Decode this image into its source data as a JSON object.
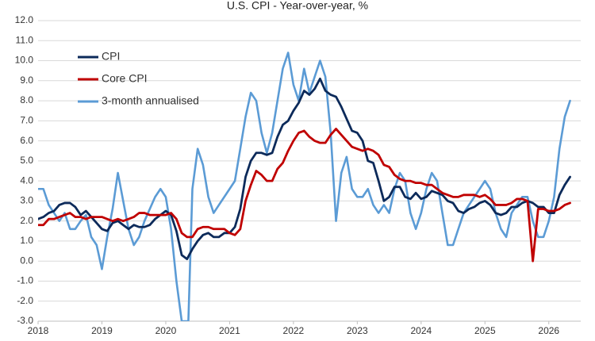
{
  "chart_data": {
    "type": "line",
    "title": "U.S. CPI - Year-over-year, %",
    "xlabel": "",
    "ylabel": "",
    "xlim": [
      2018.0,
      2026.5
    ],
    "ylim": [
      -3.0,
      12.0
    ],
    "y_tick_step": 1.0,
    "y_ticks": [
      "-3.0",
      "-2.0",
      "-1.0",
      "0.0",
      "1.0",
      "2.0",
      "3.0",
      "4.0",
      "5.0",
      "6.0",
      "7.0",
      "8.0",
      "9.0",
      "10.0",
      "11.0",
      "12.0"
    ],
    "x_ticks": [
      "2018",
      "2019",
      "2020",
      "2021",
      "2022",
      "2023",
      "2024",
      "2025",
      "2026"
    ],
    "grid": "horizontal",
    "legend": "top-left",
    "series": [
      {
        "name": "CPI",
        "color": "#0c2a5a",
        "points": [
          [
            2018.0,
            2.1
          ],
          [
            2018.083,
            2.2
          ],
          [
            2018.167,
            2.4
          ],
          [
            2018.25,
            2.5
          ],
          [
            2018.333,
            2.8
          ],
          [
            2018.417,
            2.9
          ],
          [
            2018.5,
            2.9
          ],
          [
            2018.583,
            2.7
          ],
          [
            2018.667,
            2.3
          ],
          [
            2018.75,
            2.5
          ],
          [
            2018.833,
            2.2
          ],
          [
            2018.917,
            1.9
          ],
          [
            2019.0,
            1.6
          ],
          [
            2019.083,
            1.5
          ],
          [
            2019.167,
            1.9
          ],
          [
            2019.25,
            2.0
          ],
          [
            2019.333,
            1.8
          ],
          [
            2019.417,
            1.6
          ],
          [
            2019.5,
            1.8
          ],
          [
            2019.583,
            1.7
          ],
          [
            2019.667,
            1.7
          ],
          [
            2019.75,
            1.8
          ],
          [
            2019.833,
            2.1
          ],
          [
            2019.917,
            2.3
          ],
          [
            2020.0,
            2.5
          ],
          [
            2020.083,
            2.3
          ],
          [
            2020.167,
            1.5
          ],
          [
            2020.25,
            0.3
          ],
          [
            2020.333,
            0.1
          ],
          [
            2020.417,
            0.6
          ],
          [
            2020.5,
            1.0
          ],
          [
            2020.583,
            1.3
          ],
          [
            2020.667,
            1.4
          ],
          [
            2020.75,
            1.2
          ],
          [
            2020.833,
            1.2
          ],
          [
            2020.917,
            1.4
          ],
          [
            2021.0,
            1.4
          ],
          [
            2021.083,
            1.7
          ],
          [
            2021.167,
            2.6
          ],
          [
            2021.25,
            4.2
          ],
          [
            2021.333,
            5.0
          ],
          [
            2021.417,
            5.4
          ],
          [
            2021.5,
            5.4
          ],
          [
            2021.583,
            5.3
          ],
          [
            2021.667,
            5.4
          ],
          [
            2021.75,
            6.2
          ],
          [
            2021.833,
            6.8
          ],
          [
            2021.917,
            7.0
          ],
          [
            2022.0,
            7.5
          ],
          [
            2022.083,
            7.9
          ],
          [
            2022.167,
            8.5
          ],
          [
            2022.25,
            8.3
          ],
          [
            2022.333,
            8.6
          ],
          [
            2022.417,
            9.1
          ],
          [
            2022.5,
            8.5
          ],
          [
            2022.583,
            8.3
          ],
          [
            2022.667,
            8.2
          ],
          [
            2022.75,
            7.7
          ],
          [
            2022.833,
            7.1
          ],
          [
            2022.917,
            6.5
          ],
          [
            2023.0,
            6.4
          ],
          [
            2023.083,
            6.0
          ],
          [
            2023.167,
            5.0
          ],
          [
            2023.25,
            4.9
          ],
          [
            2023.333,
            4.0
          ],
          [
            2023.417,
            3.0
          ],
          [
            2023.5,
            3.2
          ],
          [
            2023.583,
            3.7
          ],
          [
            2023.667,
            3.7
          ],
          [
            2023.75,
            3.2
          ],
          [
            2023.833,
            3.1
          ],
          [
            2023.917,
            3.4
          ],
          [
            2024.0,
            3.1
          ],
          [
            2024.083,
            3.2
          ],
          [
            2024.167,
            3.5
          ],
          [
            2024.25,
            3.4
          ],
          [
            2024.333,
            3.3
          ],
          [
            2024.417,
            3.0
          ],
          [
            2024.5,
            2.9
          ],
          [
            2024.583,
            2.5
          ],
          [
            2024.667,
            2.4
          ],
          [
            2024.75,
            2.6
          ],
          [
            2024.833,
            2.7
          ],
          [
            2024.917,
            2.9
          ],
          [
            2025.0,
            3.0
          ],
          [
            2025.083,
            2.8
          ],
          [
            2025.167,
            2.4
          ],
          [
            2025.25,
            2.3
          ],
          [
            2025.333,
            2.4
          ],
          [
            2025.417,
            2.7
          ],
          [
            2025.5,
            2.7
          ],
          [
            2025.583,
            2.9
          ],
          [
            2025.667,
            3.0
          ],
          [
            2025.75,
            2.9
          ],
          [
            2025.833,
            2.7
          ],
          [
            2025.917,
            2.7
          ],
          [
            2026.0,
            2.4
          ],
          [
            2026.083,
            2.4
          ],
          [
            2026.167,
            3.3
          ],
          [
            2026.25,
            3.8
          ],
          [
            2026.333,
            4.2
          ]
        ]
      },
      {
        "name": "Core CPI",
        "color": "#c00000",
        "points": [
          [
            2018.0,
            1.8
          ],
          [
            2018.083,
            1.8
          ],
          [
            2018.167,
            2.1
          ],
          [
            2018.25,
            2.1
          ],
          [
            2018.333,
            2.2
          ],
          [
            2018.417,
            2.3
          ],
          [
            2018.5,
            2.4
          ],
          [
            2018.583,
            2.2
          ],
          [
            2018.667,
            2.2
          ],
          [
            2018.75,
            2.1
          ],
          [
            2018.833,
            2.2
          ],
          [
            2018.917,
            2.2
          ],
          [
            2019.0,
            2.2
          ],
          [
            2019.083,
            2.1
          ],
          [
            2019.167,
            2.0
          ],
          [
            2019.25,
            2.1
          ],
          [
            2019.333,
            2.0
          ],
          [
            2019.417,
            2.1
          ],
          [
            2019.5,
            2.2
          ],
          [
            2019.583,
            2.4
          ],
          [
            2019.667,
            2.4
          ],
          [
            2019.75,
            2.3
          ],
          [
            2019.833,
            2.3
          ],
          [
            2019.917,
            2.3
          ],
          [
            2020.0,
            2.3
          ],
          [
            2020.083,
            2.4
          ],
          [
            2020.167,
            2.1
          ],
          [
            2020.25,
            1.4
          ],
          [
            2020.333,
            1.2
          ],
          [
            2020.417,
            1.2
          ],
          [
            2020.5,
            1.6
          ],
          [
            2020.583,
            1.7
          ],
          [
            2020.667,
            1.7
          ],
          [
            2020.75,
            1.6
          ],
          [
            2020.833,
            1.6
          ],
          [
            2020.917,
            1.6
          ],
          [
            2021.0,
            1.4
          ],
          [
            2021.083,
            1.3
          ],
          [
            2021.167,
            1.6
          ],
          [
            2021.25,
            3.0
          ],
          [
            2021.333,
            3.8
          ],
          [
            2021.417,
            4.5
          ],
          [
            2021.5,
            4.3
          ],
          [
            2021.583,
            4.0
          ],
          [
            2021.667,
            4.0
          ],
          [
            2021.75,
            4.6
          ],
          [
            2021.833,
            4.9
          ],
          [
            2021.917,
            5.5
          ],
          [
            2022.0,
            6.0
          ],
          [
            2022.083,
            6.4
          ],
          [
            2022.167,
            6.5
          ],
          [
            2022.25,
            6.2
          ],
          [
            2022.333,
            6.0
          ],
          [
            2022.417,
            5.9
          ],
          [
            2022.5,
            5.9
          ],
          [
            2022.583,
            6.3
          ],
          [
            2022.667,
            6.6
          ],
          [
            2022.75,
            6.3
          ],
          [
            2022.833,
            6.0
          ],
          [
            2022.917,
            5.7
          ],
          [
            2023.0,
            5.6
          ],
          [
            2023.083,
            5.5
          ],
          [
            2023.167,
            5.6
          ],
          [
            2023.25,
            5.5
          ],
          [
            2023.333,
            5.3
          ],
          [
            2023.417,
            4.8
          ],
          [
            2023.5,
            4.7
          ],
          [
            2023.583,
            4.3
          ],
          [
            2023.667,
            4.1
          ],
          [
            2023.75,
            4.0
          ],
          [
            2023.833,
            4.0
          ],
          [
            2023.917,
            3.9
          ],
          [
            2024.0,
            3.9
          ],
          [
            2024.083,
            3.8
          ],
          [
            2024.167,
            3.8
          ],
          [
            2024.25,
            3.6
          ],
          [
            2024.333,
            3.4
          ],
          [
            2024.417,
            3.3
          ],
          [
            2024.5,
            3.2
          ],
          [
            2024.583,
            3.2
          ],
          [
            2024.667,
            3.3
          ],
          [
            2024.75,
            3.3
          ],
          [
            2024.833,
            3.3
          ],
          [
            2024.917,
            3.2
          ],
          [
            2025.0,
            3.3
          ],
          [
            2025.083,
            3.1
          ],
          [
            2025.167,
            2.8
          ],
          [
            2025.25,
            2.8
          ],
          [
            2025.333,
            2.8
          ],
          [
            2025.417,
            2.9
          ],
          [
            2025.5,
            3.1
          ],
          [
            2025.583,
            3.1
          ],
          [
            2025.667,
            3.0
          ],
          [
            2025.75,
            0.0
          ],
          [
            2025.833,
            2.6
          ],
          [
            2025.917,
            2.6
          ],
          [
            2026.0,
            2.5
          ],
          [
            2026.083,
            2.5
          ],
          [
            2026.167,
            2.6
          ],
          [
            2026.25,
            2.8
          ],
          [
            2026.333,
            2.9
          ]
        ]
      },
      {
        "name": "3-month annualised",
        "color": "#5b9bd5",
        "points": [
          [
            2018.0,
            3.6
          ],
          [
            2018.083,
            3.6
          ],
          [
            2018.167,
            2.8
          ],
          [
            2018.25,
            2.4
          ],
          [
            2018.333,
            2.0
          ],
          [
            2018.417,
            2.4
          ],
          [
            2018.5,
            1.6
          ],
          [
            2018.583,
            1.6
          ],
          [
            2018.667,
            2.0
          ],
          [
            2018.75,
            2.3
          ],
          [
            2018.833,
            1.2
          ],
          [
            2018.917,
            0.8
          ],
          [
            2019.0,
            -0.4
          ],
          [
            2019.083,
            1.2
          ],
          [
            2019.167,
            2.6
          ],
          [
            2019.25,
            4.4
          ],
          [
            2019.333,
            3.0
          ],
          [
            2019.417,
            1.6
          ],
          [
            2019.5,
            0.8
          ],
          [
            2019.583,
            1.2
          ],
          [
            2019.667,
            2.0
          ],
          [
            2019.75,
            2.6
          ],
          [
            2019.833,
            3.2
          ],
          [
            2019.917,
            3.6
          ],
          [
            2020.0,
            3.2
          ],
          [
            2020.083,
            1.6
          ],
          [
            2020.167,
            -1.0
          ],
          [
            2020.25,
            -3.0
          ],
          [
            2020.333,
            -3.0
          ],
          [
            2020.354,
            -3.0
          ],
          [
            2020.417,
            3.6
          ],
          [
            2020.5,
            5.6
          ],
          [
            2020.583,
            4.8
          ],
          [
            2020.667,
            3.2
          ],
          [
            2020.75,
            2.4
          ],
          [
            2020.833,
            2.8
          ],
          [
            2021.0,
            3.6
          ],
          [
            2021.083,
            4.0
          ],
          [
            2021.167,
            5.6
          ],
          [
            2021.25,
            7.2
          ],
          [
            2021.333,
            8.4
          ],
          [
            2021.417,
            8.0
          ],
          [
            2021.5,
            6.4
          ],
          [
            2021.583,
            5.4
          ],
          [
            2021.667,
            6.4
          ],
          [
            2021.75,
            8.0
          ],
          [
            2021.833,
            9.6
          ],
          [
            2021.917,
            10.4
          ],
          [
            2022.0,
            8.8
          ],
          [
            2022.083,
            8.0
          ],
          [
            2022.167,
            9.6
          ],
          [
            2022.25,
            8.4
          ],
          [
            2022.333,
            9.2
          ],
          [
            2022.417,
            10.0
          ],
          [
            2022.5,
            9.2
          ],
          [
            2022.583,
            6.4
          ],
          [
            2022.667,
            2.0
          ],
          [
            2022.75,
            4.4
          ],
          [
            2022.833,
            5.2
          ],
          [
            2022.917,
            3.6
          ],
          [
            2023.0,
            3.2
          ],
          [
            2023.083,
            3.2
          ],
          [
            2023.167,
            3.6
          ],
          [
            2023.25,
            2.8
          ],
          [
            2023.333,
            2.4
          ],
          [
            2023.417,
            2.8
          ],
          [
            2023.5,
            2.4
          ],
          [
            2023.583,
            3.6
          ],
          [
            2023.667,
            4.4
          ],
          [
            2023.75,
            4.0
          ],
          [
            2023.833,
            2.4
          ],
          [
            2023.917,
            1.6
          ],
          [
            2024.0,
            2.4
          ],
          [
            2024.083,
            3.6
          ],
          [
            2024.167,
            4.4
          ],
          [
            2024.25,
            4.0
          ],
          [
            2024.333,
            2.4
          ],
          [
            2024.417,
            0.8
          ],
          [
            2024.5,
            0.8
          ],
          [
            2024.583,
            1.6
          ],
          [
            2024.667,
            2.4
          ],
          [
            2024.75,
            2.8
          ],
          [
            2024.833,
            3.2
          ],
          [
            2024.917,
            3.6
          ],
          [
            2025.0,
            4.0
          ],
          [
            2025.083,
            3.6
          ],
          [
            2025.167,
            2.4
          ],
          [
            2025.25,
            1.6
          ],
          [
            2025.333,
            1.2
          ],
          [
            2025.417,
            2.4
          ],
          [
            2025.5,
            2.8
          ],
          [
            2025.583,
            3.2
          ],
          [
            2025.667,
            3.2
          ],
          [
            2025.75,
            2.0
          ],
          [
            2025.833,
            1.2
          ],
          [
            2025.917,
            1.2
          ],
          [
            2026.0,
            2.0
          ],
          [
            2026.083,
            3.2
          ],
          [
            2026.167,
            5.6
          ],
          [
            2026.25,
            7.2
          ],
          [
            2026.333,
            8.0
          ]
        ]
      }
    ]
  }
}
